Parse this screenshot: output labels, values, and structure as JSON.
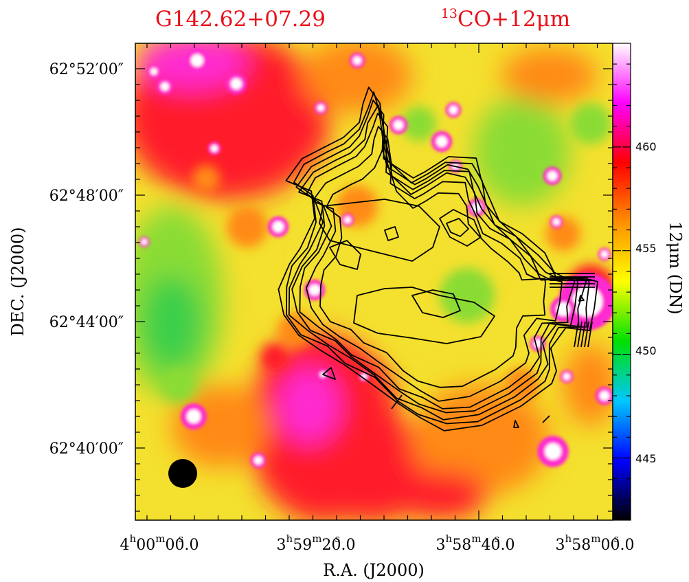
{
  "chart_data": {
    "type": "heatmap",
    "title_left": "G142.62+07.29",
    "title_right_sup": "13",
    "title_right": "CO+12μm",
    "xlabel": "R.A. (J2000)",
    "ylabel": "DEC. (J2000)",
    "x_ticks": [
      {
        "h": "4",
        "m": "00",
        "s": "00.0"
      },
      {
        "h": "3",
        "m": "59",
        "s": "20.0"
      },
      {
        "h": "3",
        "m": "58",
        "s": "40.0"
      },
      {
        "h": "3",
        "m": "58",
        "s": "00.0"
      }
    ],
    "y_ticks": [
      "62°52′00″",
      "62°48′00″",
      "62°44′00″",
      "62°40′00″"
    ],
    "colorbar": {
      "label": "12μm (DN)",
      "ticks": [
        "460",
        "455",
        "450",
        "445"
      ],
      "range": [
        442,
        465
      ],
      "colors": [
        "#000000",
        "#0000ff",
        "#00c8ff",
        "#00e000",
        "#ffff00",
        "#ff9000",
        "#ff0000",
        "#ff00ff",
        "#ffffff"
      ]
    },
    "field_colors": {
      "background": "#f4e02e",
      "warm": "#ff8a18",
      "hot": "#ff1e2a",
      "peak": "#ff2cd0",
      "cool": "#8adc34",
      "cold": "#3ccf4a"
    },
    "contour_color": "#000000",
    "beam": "filled circle, bottom-left"
  }
}
